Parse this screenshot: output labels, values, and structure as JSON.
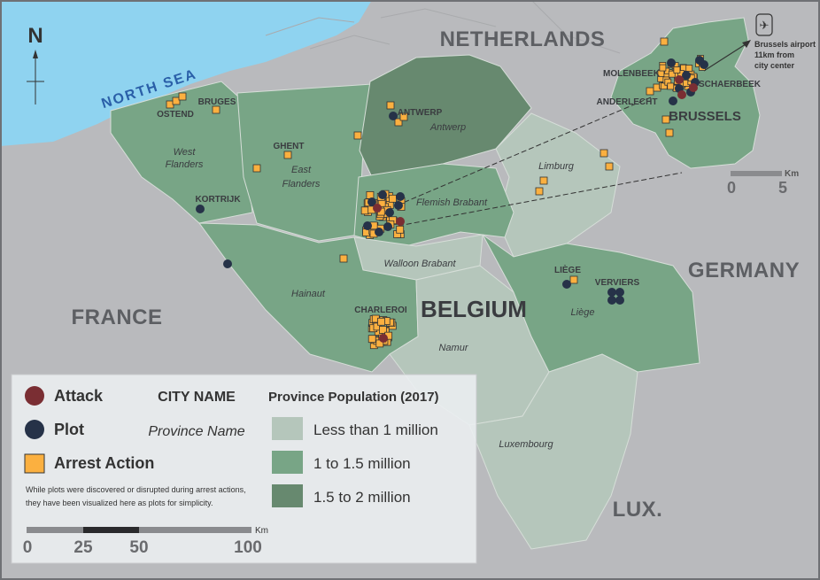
{
  "compass": {
    "label": "N",
    "icon": "north-arrow-icon"
  },
  "seas": {
    "north_sea": "NORTH SEA"
  },
  "countries": {
    "netherlands": "NETHERLANDS",
    "germany": "GERMANY",
    "france": "FRANCE",
    "belgium": "BELGIUM",
    "luxembourg": "LUX."
  },
  "cities": {
    "ostend": "OSTEND",
    "bruges": "BRUGES",
    "ghent": "GHENT",
    "antwerp": "ANTWERP",
    "kortrijk": "KORTRIJK",
    "charleroi": "CHARLEROI",
    "liege": "LIÈGE",
    "verviers": "VERVIERS",
    "molenbeek": "MOLENBEEK",
    "anderlecht": "ANDERLECHT",
    "schaerbeek": "SCHAERBEEK",
    "brussels": "BRUSSELS"
  },
  "provinces": {
    "west_flanders": [
      "West",
      "Flanders"
    ],
    "east_flanders": [
      "East",
      "Flanders"
    ],
    "antwerp": "Antwerp",
    "limburg": "Limburg",
    "flemish_brabant": "Flemish Brabant",
    "walloon_brabant": "Walloon Brabant",
    "hainaut": "Hainaut",
    "namur": "Namur",
    "liege": "Liège",
    "luxembourg": "Luxembourg"
  },
  "airport": {
    "icon": "airplane-icon",
    "lines": [
      "Brussels airport",
      "11km from",
      "city center"
    ]
  },
  "inset_scale": {
    "start": "0",
    "end": "5",
    "unit": "Km"
  },
  "legend": {
    "attack": "Attack",
    "plot": "Plot",
    "arrest": "Arrest Action",
    "city_name": "CITY NAME",
    "province_name": "Province Name",
    "note": [
      "While plots were discovered or disrupted during arrest actions,",
      "they have been visualized here as plots for simplicity."
    ],
    "population_title": "Province Population (2017)",
    "population_classes": [
      "Less than 1 million",
      "1 to 1.5 million",
      "1.5 to 2 million"
    ],
    "scale": {
      "ticks": [
        "0",
        "25",
        "50",
        "100"
      ],
      "unit": "Km"
    }
  },
  "colors": {
    "attack": "#7a2e33",
    "plot": "#263248",
    "arrest": "#fbb040",
    "pop_low": "#b5c6bb",
    "pop_mid": "#78a586",
    "pop_high": "#67896f",
    "sea": "#8fd3f0",
    "land": "#b9babd"
  }
}
